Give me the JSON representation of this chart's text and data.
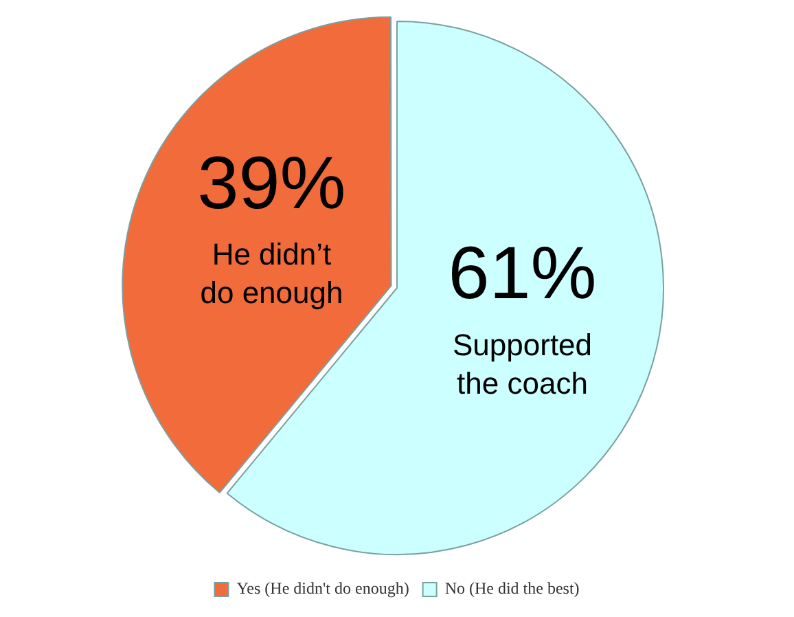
{
  "chart_data": {
    "type": "pie",
    "categories": [
      "Yes (He didn't do enough)",
      "No (He did the best)"
    ],
    "values": [
      39,
      61
    ],
    "colors": [
      "#f26b3a",
      "#ccffff"
    ],
    "value_labels": [
      "39%",
      "61%"
    ],
    "annotations": [
      "He didn’t\ndo enough",
      "Supported\nthe coach"
    ],
    "legend": "bottom"
  }
}
